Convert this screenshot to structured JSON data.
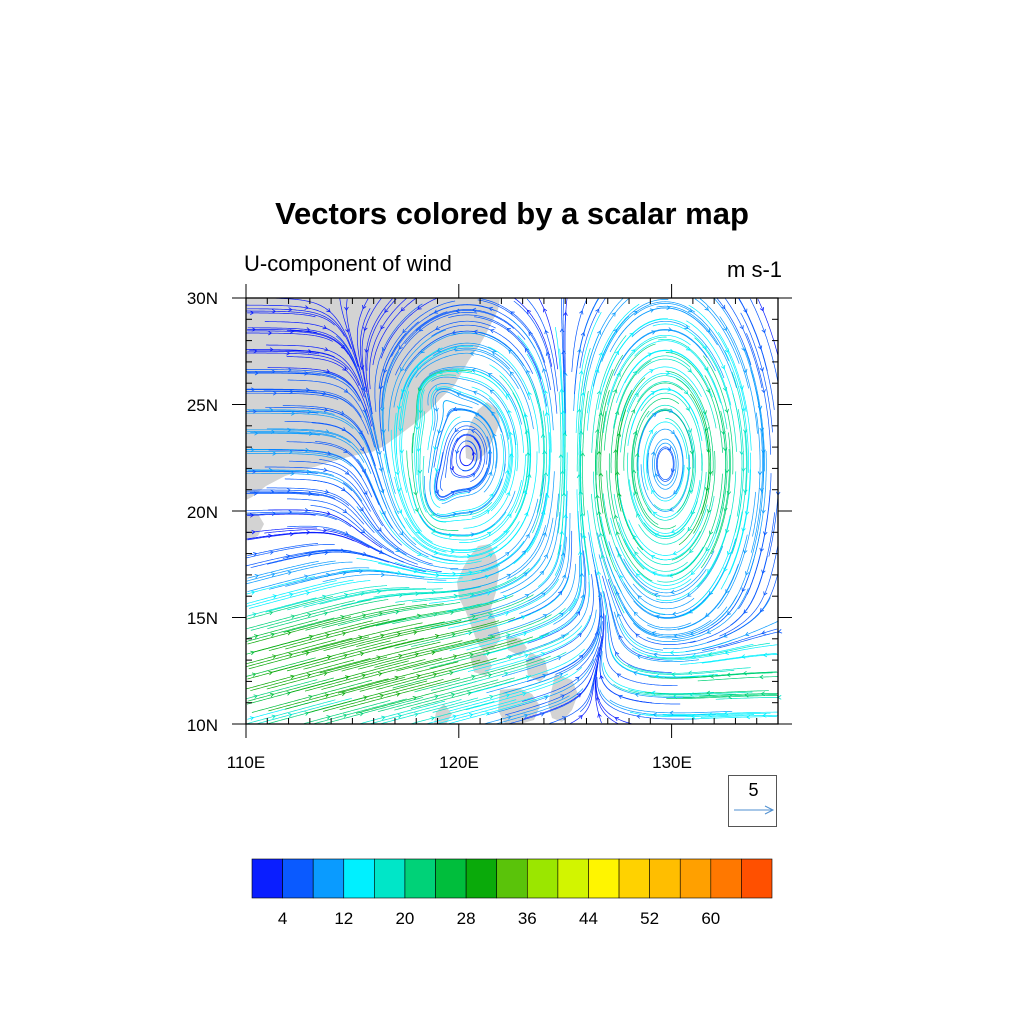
{
  "title": "Vectors colored by a scalar map",
  "left_string": "U-component of wind",
  "right_string": "m s-1",
  "map": {
    "lon_range": [
      110,
      135
    ],
    "lat_range": [
      10,
      30
    ],
    "lat_ticks": [
      "30N",
      "25N",
      "20N",
      "15N",
      "10N"
    ],
    "lon_ticks": [
      "110E",
      "120E",
      "130E"
    ],
    "land_color": "#d3d3d3",
    "ocean_color": "#ffffff"
  },
  "reference_vector": {
    "magnitude": "5",
    "color": "#4f8fd0"
  },
  "colorbar": {
    "colors": [
      "#0a1eff",
      "#0a5aff",
      "#0a9bff",
      "#00f0ff",
      "#00e6c8",
      "#00d278",
      "#00be3c",
      "#0aaa0a",
      "#5ac30a",
      "#9be600",
      "#d2f500",
      "#fff500",
      "#ffd200",
      "#ffbe00",
      "#ffa000",
      "#ff7800",
      "#ff5000"
    ],
    "labels": [
      "4",
      "12",
      "20",
      "28",
      "36",
      "44",
      "52",
      "60"
    ]
  }
}
